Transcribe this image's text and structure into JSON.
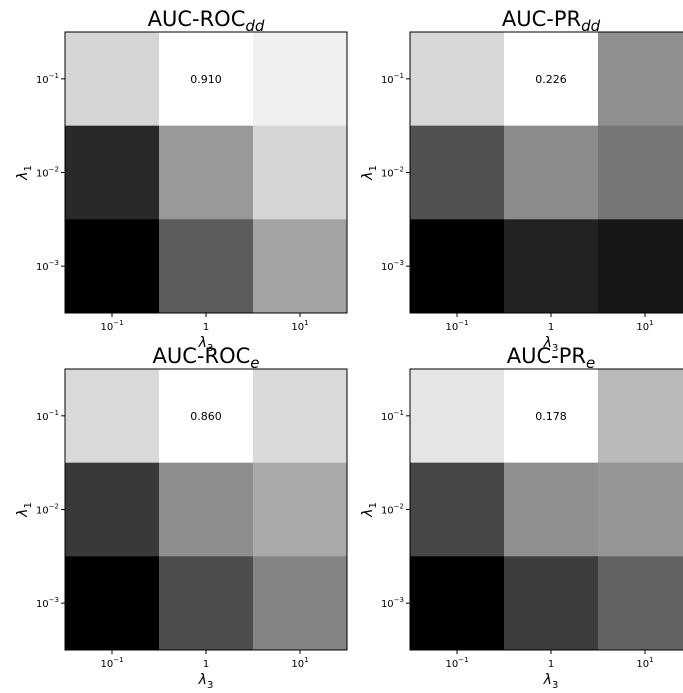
{
  "chart_data": [
    {
      "type": "heatmap",
      "title": "AUC-ROC",
      "title_subscript": "dd",
      "xlabel": "λ",
      "xlabel_subscript": "3",
      "ylabel": "λ",
      "ylabel_subscript": "1",
      "x_ticks": [
        {
          "base": "10",
          "exp": "−1"
        },
        {
          "base": "1",
          "exp": ""
        },
        {
          "base": "10",
          "exp": "1"
        }
      ],
      "y_ticks": [
        {
          "base": "10",
          "exp": "−1"
        },
        {
          "base": "10",
          "exp": "−2"
        },
        {
          "base": "10",
          "exp": "−3"
        }
      ],
      "values": [
        [
          0.87,
          0.91,
          0.895
        ],
        [
          0.7,
          0.81,
          0.87
        ],
        [
          0.66,
          0.75,
          0.82
        ]
      ],
      "annotation": {
        "row": 0,
        "col": 1,
        "text": "0.910"
      },
      "colormap": "grayscale",
      "grid": false
    },
    {
      "type": "heatmap",
      "title": "AUC-PR",
      "title_subscript": "dd",
      "xlabel": "λ",
      "xlabel_subscript": "3",
      "ylabel": "λ",
      "ylabel_subscript": "1",
      "x_ticks": [
        {
          "base": "10",
          "exp": "−1"
        },
        {
          "base": "1",
          "exp": ""
        },
        {
          "base": "10",
          "exp": "1"
        }
      ],
      "y_ticks": [
        {
          "base": "10",
          "exp": "−1"
        },
        {
          "base": "10",
          "exp": "−2"
        },
        {
          "base": "10",
          "exp": "−3"
        }
      ],
      "values": [
        [
          0.204,
          0.226,
          0.164
        ],
        [
          0.13,
          0.162,
          0.15
        ],
        [
          0.085,
          0.104,
          0.097
        ]
      ],
      "annotation": {
        "row": 0,
        "col": 1,
        "text": "0.226"
      },
      "colormap": "grayscale",
      "grid": false
    },
    {
      "type": "heatmap",
      "title": "AUC-ROC",
      "title_subscript": "e",
      "xlabel": "λ",
      "xlabel_subscript": "3",
      "ylabel": "λ",
      "ylabel_subscript": "1",
      "x_ticks": [
        {
          "base": "10",
          "exp": "−1"
        },
        {
          "base": "1",
          "exp": ""
        },
        {
          "base": "10",
          "exp": "1"
        }
      ],
      "y_ticks": [
        {
          "base": "10",
          "exp": "−1"
        },
        {
          "base": "10",
          "exp": "−2"
        },
        {
          "base": "10",
          "exp": "−3"
        }
      ],
      "values": [
        [
          0.82,
          0.86,
          0.82
        ],
        [
          0.65,
          0.74,
          0.77
        ],
        [
          0.59,
          0.67,
          0.73
        ]
      ],
      "annotation": {
        "row": 0,
        "col": 1,
        "text": "0.860"
      },
      "colormap": "grayscale",
      "grid": false
    },
    {
      "type": "heatmap",
      "title": "AUC-PR",
      "title_subscript": "e",
      "xlabel": "λ",
      "xlabel_subscript": "3",
      "ylabel": "λ",
      "ylabel_subscript": "1",
      "x_ticks": [
        {
          "base": "10",
          "exp": "−1"
        },
        {
          "base": "1",
          "exp": ""
        },
        {
          "base": "10",
          "exp": "1"
        }
      ],
      "y_ticks": [
        {
          "base": "10",
          "exp": "−1"
        },
        {
          "base": "10",
          "exp": "−2"
        },
        {
          "base": "10",
          "exp": "−3"
        }
      ],
      "values": [
        [
          0.167,
          0.178,
          0.148
        ],
        [
          0.099,
          0.13,
          0.133
        ],
        [
          0.069,
          0.095,
          0.111
        ]
      ],
      "annotation": {
        "row": 0,
        "col": 1,
        "text": "0.178"
      },
      "colormap": "grayscale",
      "grid": false
    }
  ]
}
